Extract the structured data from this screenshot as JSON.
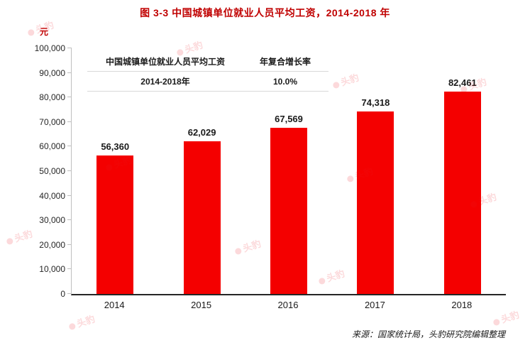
{
  "title": "图 3-3 中国城镇单位就业人员平均工资，2014-2018 年",
  "chart_data": {
    "type": "bar",
    "title": "图 3-3 中国城镇单位就业人员平均工资，2014-2018 年",
    "categories": [
      "2014",
      "2015",
      "2016",
      "2017",
      "2018"
    ],
    "values": [
      56360,
      62029,
      67569,
      74318,
      82461
    ],
    "value_labels": [
      "56,360",
      "62,029",
      "67,569",
      "74,318",
      "82,461"
    ],
    "xlabel": "",
    "ylabel": "元",
    "ylim": [
      0,
      100000
    ],
    "ytick_step": 10000,
    "ytick_labels": [
      "0",
      "10,000",
      "20,000",
      "30,000",
      "40,000",
      "50,000",
      "60,000",
      "70,000",
      "80,000",
      "90,000",
      "100,000"
    ],
    "grid": false,
    "legend_position": "inside-top-left",
    "legend_table": {
      "headers": [
        "中国城镇单位就业人员平均工资",
        "年复合增长率"
      ],
      "row": [
        "2014-2018年",
        "10.0%"
      ]
    }
  },
  "source_note": "来源：国家统计局，头豹研究院编辑整理",
  "watermark_text": "头豹",
  "colors": {
    "bar": "#f40000",
    "title": "#c00000",
    "axis": "#262626",
    "table_line": "#d9d9d9",
    "watermark": "#ed1c24"
  }
}
